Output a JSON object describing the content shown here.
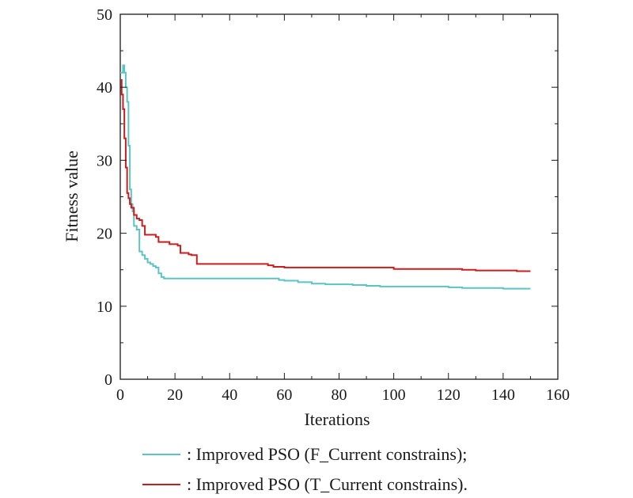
{
  "chart_data": {
    "type": "line",
    "xlabel": "Iterations",
    "ylabel": "Fitness value",
    "xlim": [
      0,
      160
    ],
    "ylim": [
      0,
      50
    ],
    "xticks": [
      0,
      20,
      40,
      60,
      80,
      100,
      120,
      140,
      160
    ],
    "yticks": [
      0,
      10,
      20,
      30,
      40,
      50
    ],
    "xtick_labels": [
      "0",
      "20",
      "40",
      "60",
      "80",
      "100",
      "120",
      "140",
      "160"
    ],
    "ytick_labels": [
      "0",
      "10",
      "20",
      "30",
      "40",
      "50"
    ],
    "grid": false,
    "legend_placement": "bottom",
    "series": [
      {
        "name": ": Improved PSO (F_Current constrains);",
        "color": "#5bc4c4",
        "x": [
          0,
          1,
          1.5,
          2,
          2.5,
          3,
          3.5,
          4,
          4.5,
          5,
          6,
          7,
          8,
          9,
          10,
          11,
          12,
          13,
          14,
          15,
          16,
          20,
          30,
          40,
          50,
          55,
          58,
          60,
          65,
          70,
          75,
          80,
          85,
          90,
          95,
          100,
          110,
          120,
          125,
          130,
          140,
          150
        ],
        "y": [
          42,
          43,
          42,
          40,
          38,
          32,
          26,
          24,
          23,
          21,
          20.5,
          17.5,
          17,
          16.5,
          16,
          15.8,
          15.5,
          15.3,
          14.5,
          14,
          13.8,
          13.8,
          13.8,
          13.8,
          13.8,
          13.8,
          13.6,
          13.5,
          13.3,
          13.1,
          13.0,
          13.0,
          12.9,
          12.8,
          12.7,
          12.7,
          12.7,
          12.6,
          12.5,
          12.5,
          12.4,
          12.4
        ]
      },
      {
        "name": ": Improved PSO (T_Current constrains).",
        "color": "#c81e1e",
        "x": [
          0,
          0.5,
          1,
          1.5,
          2,
          2.5,
          3,
          3.5,
          4,
          5,
          6,
          7,
          8,
          9,
          10,
          12,
          13,
          14,
          16,
          18,
          20,
          21,
          22,
          25,
          26,
          28,
          30,
          40,
          50,
          54,
          56,
          60,
          70,
          80,
          90,
          95,
          100,
          110,
          120,
          125,
          128,
          130,
          140,
          145,
          150
        ],
        "y": [
          41,
          39,
          37,
          33,
          29,
          25.5,
          24.8,
          24,
          23.5,
          22.5,
          22,
          21.8,
          21,
          19.8,
          19.8,
          19.8,
          19.5,
          18.8,
          18.8,
          18.5,
          18.5,
          18.3,
          17.3,
          17.1,
          17.0,
          15.8,
          15.8,
          15.8,
          15.8,
          15.6,
          15.4,
          15.3,
          15.3,
          15.3,
          15.3,
          15.3,
          15.1,
          15.1,
          15.1,
          15.0,
          15.0,
          14.9,
          14.9,
          14.8,
          14.8
        ]
      }
    ]
  }
}
